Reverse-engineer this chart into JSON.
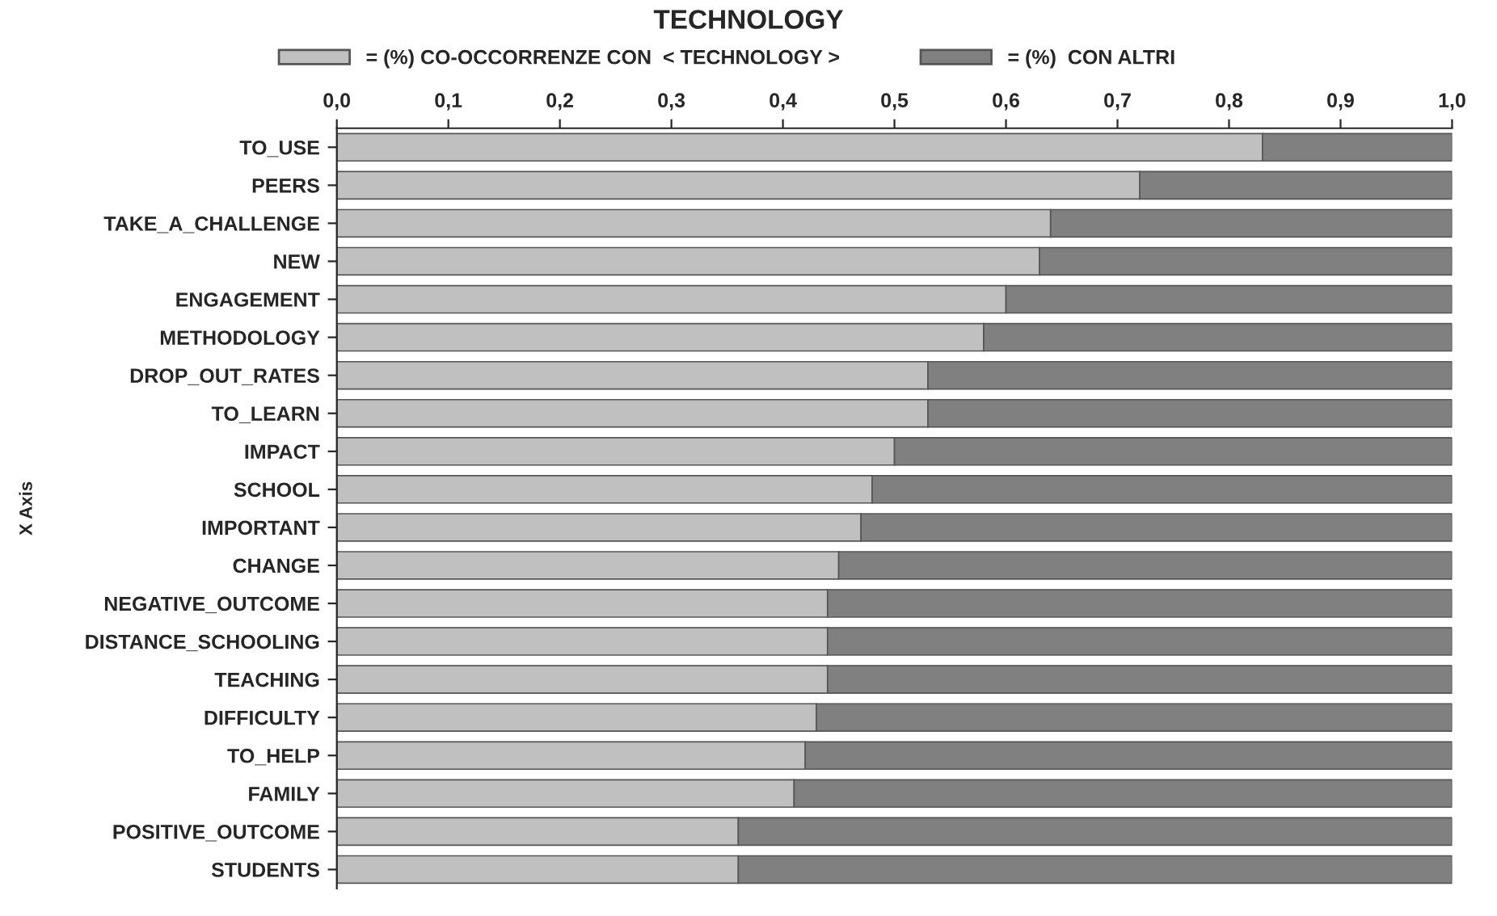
{
  "chart_data": {
    "type": "bar",
    "orientation": "horizontal",
    "stacked": true,
    "title": "TECHNOLOGY",
    "ylabel": "X Axis",
    "categories": [
      "TO_USE",
      "PEERS",
      "TAKE_A_CHALLENGE",
      "NEW",
      "ENGAGEMENT",
      "METHODOLOGY",
      "DROP_OUT_RATES",
      "TO_LEARN",
      "IMPACT",
      "SCHOOL",
      "IMPORTANT",
      "CHANGE",
      "NEGATIVE_OUTCOME",
      "DISTANCE_SCHOOLING",
      "TEACHING",
      "DIFFICULTY",
      "TO_HELP",
      "FAMILY",
      "POSITIVE_OUTCOME",
      "STUDENTS"
    ],
    "series": [
      {
        "name": "= (%) CO-OCCORRENZE CON  < TECHNOLOGY >",
        "color": "#c0c0c0",
        "values": [
          0.83,
          0.72,
          0.64,
          0.63,
          0.6,
          0.58,
          0.53,
          0.53,
          0.5,
          0.48,
          0.47,
          0.45,
          0.44,
          0.44,
          0.44,
          0.43,
          0.42,
          0.41,
          0.36,
          0.36
        ]
      },
      {
        "name": "= (%)  CON ALTRI",
        "color": "#808080",
        "values": [
          0.17,
          0.28,
          0.36,
          0.37,
          0.4,
          0.42,
          0.47,
          0.47,
          0.5,
          0.52,
          0.53,
          0.55,
          0.56,
          0.56,
          0.56,
          0.57,
          0.58,
          0.59,
          0.64,
          0.64
        ]
      }
    ],
    "xlim": [
      0,
      1.0
    ],
    "xticks": [
      {
        "value": 0,
        "label": "0,0"
      },
      {
        "value": 0.1,
        "label": "0,1"
      },
      {
        "value": 0.2,
        "label": "0,2"
      },
      {
        "value": 0.3,
        "label": "0,3"
      },
      {
        "value": 0.4,
        "label": "0,4"
      },
      {
        "value": 0.5,
        "label": "0,5"
      },
      {
        "value": 0.6,
        "label": "0,6"
      },
      {
        "value": 0.7,
        "label": "0,7"
      },
      {
        "value": 0.8,
        "label": "0,8"
      },
      {
        "value": 0.9,
        "label": "0,9"
      },
      {
        "value": 1.0,
        "label": "1,0"
      }
    ],
    "legend": "top",
    "grid": false
  }
}
